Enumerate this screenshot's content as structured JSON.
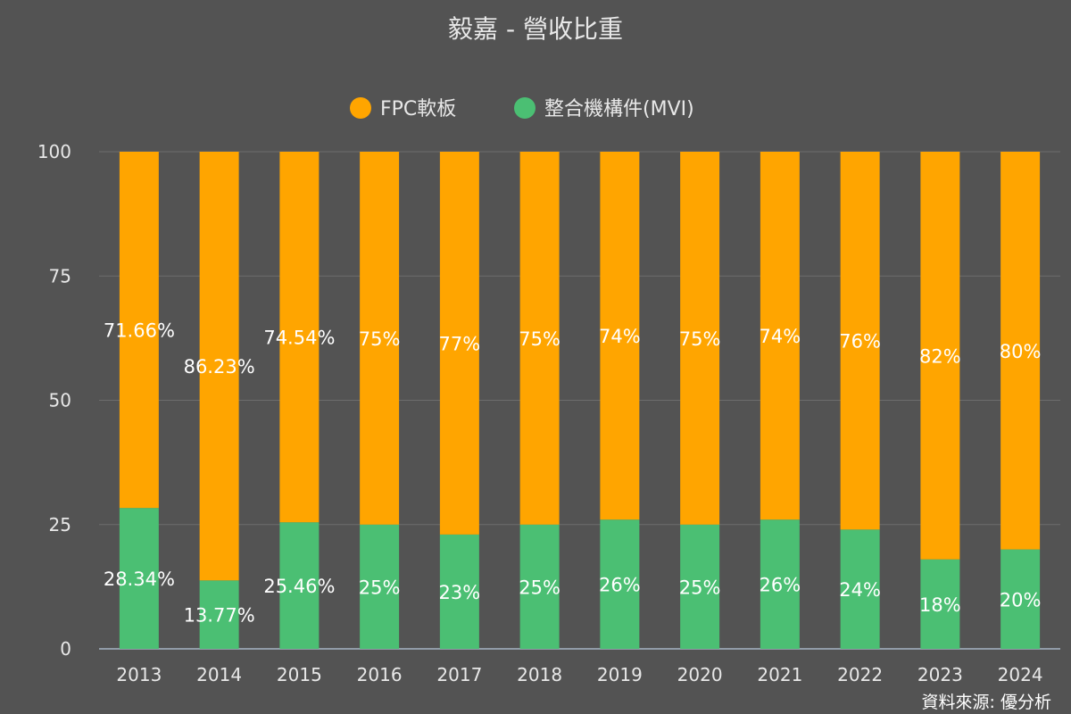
{
  "chart_data": {
    "type": "bar",
    "stacked": true,
    "title": "毅嘉 - 營收比重",
    "categories": [
      "2013",
      "2014",
      "2015",
      "2016",
      "2017",
      "2018",
      "2019",
      "2020",
      "2021",
      "2022",
      "2023",
      "2024"
    ],
    "series": [
      {
        "name": "整合機構件(MVI)",
        "color": "#4bbf73",
        "values": [
          28.34,
          13.77,
          25.46,
          25,
          23,
          25,
          26,
          25,
          26,
          24,
          18,
          20
        ],
        "labels": [
          "28.34%",
          "13.77%",
          "25.46%",
          "25%",
          "23%",
          "25%",
          "26%",
          "25%",
          "26%",
          "24%",
          "18%",
          "20%"
        ]
      },
      {
        "name": "FPC軟板",
        "color": "#ffa500",
        "values": [
          71.66,
          86.23,
          74.54,
          75,
          77,
          75,
          74,
          75,
          74,
          76,
          82,
          80
        ],
        "labels": [
          "71.66%",
          "86.23%",
          "74.54%",
          "75%",
          "77%",
          "75%",
          "74%",
          "75%",
          "74%",
          "76%",
          "82%",
          "80%"
        ]
      }
    ],
    "ylim": [
      0,
      100
    ],
    "yticks": [
      0,
      25,
      50,
      75,
      100
    ],
    "grid": true,
    "legend_position": "top-center"
  },
  "source_note": "資料來源: 優分析"
}
